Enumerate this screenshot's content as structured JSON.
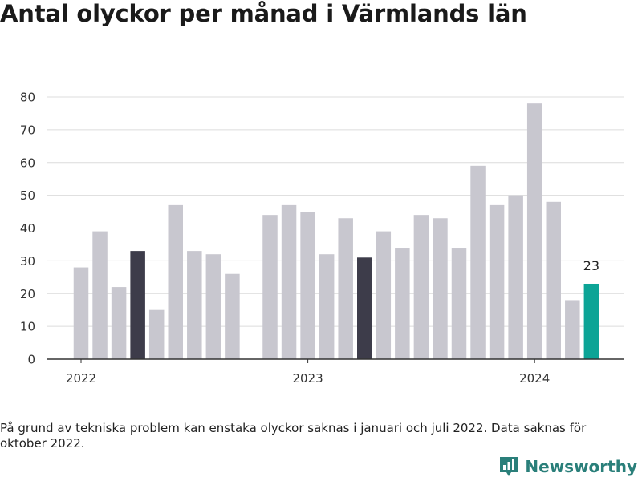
{
  "title": "Antal olyckor per månad i Värmlands län",
  "note": "På grund av tekniska problem kan enstaka olyckor saknas i januari och juli 2022. Data saknas för oktober 2022.",
  "brand": {
    "name": "Newsworthy",
    "icon": "newsworthy-logo-icon"
  },
  "colors": {
    "default": "#c8c7cf",
    "highlight": "#3d3c4a",
    "latest": "#0ca496",
    "grid": "#dcdcdc",
    "axis": "#333333",
    "text": "#333333"
  },
  "chart_data": {
    "type": "bar",
    "title": "Antal olyckor per månad i Värmlands län",
    "xlabel": "",
    "ylabel": "",
    "ylim": [
      0,
      80
    ],
    "yticks": [
      0,
      10,
      20,
      30,
      40,
      50,
      60,
      70,
      80
    ],
    "grid": true,
    "x_tick_labels": [
      {
        "label": "2022",
        "at": "2022-01"
      },
      {
        "label": "2023",
        "at": "2023-01"
      },
      {
        "label": "2024",
        "at": "2024-01"
      }
    ],
    "months": [
      "2022-01",
      "2022-02",
      "2022-03",
      "2022-04",
      "2022-05",
      "2022-06",
      "2022-07",
      "2022-08",
      "2022-09",
      "2022-10",
      "2022-11",
      "2022-12",
      "2023-01",
      "2023-02",
      "2023-03",
      "2023-04",
      "2023-05",
      "2023-06",
      "2023-07",
      "2023-08",
      "2023-09",
      "2023-10",
      "2023-11",
      "2023-12",
      "2024-01",
      "2024-02",
      "2024-03",
      "2024-04"
    ],
    "values": [
      28,
      39,
      22,
      33,
      15,
      47,
      33,
      32,
      26,
      null,
      44,
      47,
      45,
      32,
      43,
      31,
      39,
      34,
      44,
      43,
      34,
      59,
      47,
      50,
      78,
      48,
      18,
      23
    ],
    "highlight_months": [
      "2022-04",
      "2023-04"
    ],
    "latest_month": "2024-04",
    "value_labels": [
      {
        "month": "2024-04",
        "label": "23"
      }
    ]
  }
}
